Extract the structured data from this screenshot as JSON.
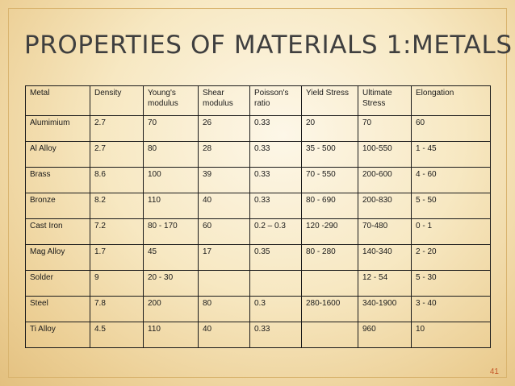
{
  "slide": {
    "title": "PROPERTIES OF MATERIALS 1:METALS",
    "page_number": "41"
  },
  "table": {
    "headers": [
      "Metal",
      "Density",
      "Young's\nmodulus",
      "Shear\nmodulus",
      "Poisson's\nratio",
      "Yield Stress",
      "Ultimate\nStress",
      "Elongation"
    ],
    "rows": [
      [
        "Alumimium",
        "2.7",
        "70",
        "26",
        "0.33",
        "20",
        "70",
        "60"
      ],
      [
        "Al Alloy",
        "2.7",
        "80",
        "28",
        "0.33",
        "35 - 500",
        "100-550",
        "1 - 45"
      ],
      [
        "Brass",
        "8.6",
        "100",
        "39",
        "0.33",
        "70 - 550",
        "200-600",
        "4 - 60"
      ],
      [
        "Bronze",
        "8.2",
        "110",
        "40",
        "0.33",
        "80 - 690",
        "200-830",
        "5 - 50"
      ],
      [
        "Cast Iron",
        "7.2",
        "80 - 170",
        "60",
        "0.2 – 0.3",
        "120 -290",
        "70-480",
        "0 - 1"
      ],
      [
        "Mag Alloy",
        "1.7",
        "45",
        "17",
        "0.35",
        "80 - 280",
        "140-340",
        "2 - 20"
      ],
      [
        "Solder",
        "9",
        "20 - 30",
        "",
        "",
        "",
        "12 - 54",
        "5 - 30"
      ],
      [
        "Steel",
        "7.8",
        "200",
        "80",
        "0.3",
        "280-1600",
        "340-1900",
        "3 - 40"
      ],
      [
        "Ti Alloy",
        "4.5",
        "110",
        "40",
        "0.33",
        "",
        "960",
        "10"
      ]
    ]
  }
}
